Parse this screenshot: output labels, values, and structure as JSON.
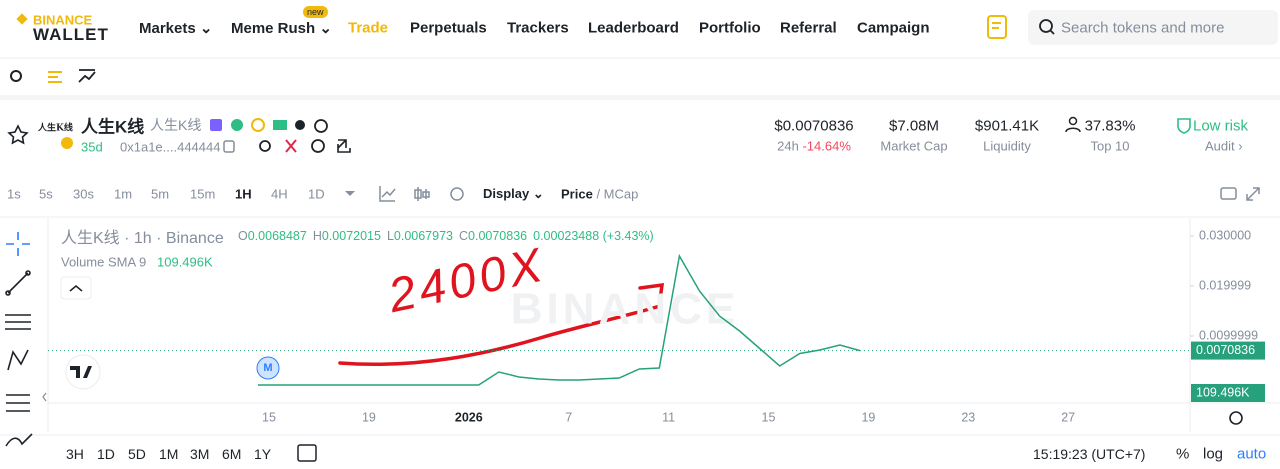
{
  "nav": {
    "logo_top": "BINANCE",
    "logo_bottom": "WALLET",
    "items": [
      "Markets",
      "Meme Rush",
      "Trade",
      "Perpetuals",
      "Trackers",
      "Leaderboard",
      "Portfolio",
      "Referral",
      "Campaign"
    ],
    "dropdown_items": [
      0,
      1
    ],
    "active_item": 2,
    "new_badge": "new",
    "search_placeholder": "Search tokens and more"
  },
  "token": {
    "logo_text": "人生K线",
    "name": "人生K线",
    "alt_name": "人生K线",
    "age": "35d",
    "address": "0x1a1e....444444"
  },
  "stats": [
    {
      "value": "$0.0070836",
      "label": "24h",
      "change": "-14.64%"
    },
    {
      "value": "$7.08M",
      "label": "Market Cap"
    },
    {
      "value": "$901.41K",
      "label": "Liquidity"
    },
    {
      "value": "37.83%",
      "label": "Top 10"
    }
  ],
  "risk": {
    "label": "Low risk",
    "audit": "Audit"
  },
  "toolbar": {
    "intervals": [
      "1s",
      "5s",
      "30s",
      "1m",
      "5m",
      "15m",
      "1H",
      "4H",
      "1D"
    ],
    "active_interval": 6,
    "display": "Display",
    "price_toggle": "Price",
    "mcap_toggle": "/ MCap"
  },
  "chart": {
    "symbol": "人生K线 · 1h · Binance",
    "ohlc": [
      {
        "key": "O",
        "value": "0.0068487"
      },
      {
        "key": "H",
        "value": "0.0072015"
      },
      {
        "key": "L",
        "value": "0.0067973"
      },
      {
        "key": "C",
        "value": "0.0070836"
      }
    ],
    "change": "0.00023488 (+3.43%)",
    "volume_label": "Volume SMA 9",
    "volume_value": "109.496K",
    "ylim": [
      -0.0034,
      0.0336
    ],
    "yticks": [
      {
        "value": 0.03,
        "label": "0.030000"
      },
      0.019999,
      0.0099999
    ],
    "xticks": [
      "15",
      "19",
      "2026",
      "7",
      "11",
      "15",
      "19",
      "23",
      "27"
    ],
    "price_values": [
      0.0002,
      0.0002,
      0.0002,
      0.0002,
      0.0002,
      0.0002,
      0.0002,
      0.0002,
      0.0002,
      0.0002,
      0.0002,
      0.0002,
      0.0028,
      0.0018,
      0.0014,
      0.0012,
      0.0012,
      0.0014,
      0.0016,
      0.0034,
      0.0036,
      0.026,
      0.019,
      0.014,
      0.011,
      0.0075,
      0.004,
      0.0065,
      0.0072,
      0.0082,
      0.0070836
    ],
    "price_color": "#26a17b",
    "last_price": 0.0070836,
    "annotation": "2400X",
    "watermark": "BINANCE",
    "marker": "M"
  },
  "bottom": {
    "ranges": [
      "3H",
      "1D",
      "5D",
      "1M",
      "3M",
      "6M",
      "1Y"
    ],
    "time": "15:19:23 (UTC+7)",
    "percent": "%",
    "log": "log",
    "auto": "auto"
  }
}
